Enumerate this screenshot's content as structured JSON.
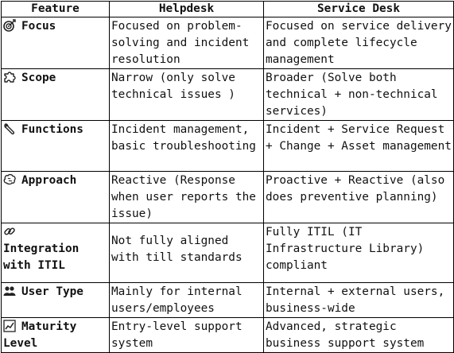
{
  "headers": [
    "Feature",
    "Helpdesk",
    "Service Desk"
  ],
  "rows": [
    {
      "icon": "target-icon",
      "feature": "Focus",
      "helpdesk": "Focused on problem-solving and incident resolution",
      "service_desk": "Focused on service delivery and complete lifecycle management"
    },
    {
      "icon": "puzzle-icon",
      "feature": "Scope",
      "helpdesk": "Narrow (only solve technical issues )",
      "service_desk": "Broader (Solve both technical + non-technical services)"
    },
    {
      "icon": "wrench-icon",
      "feature": "Functions",
      "helpdesk": "Incident management, basic troubleshooting",
      "service_desk": "Incident + Service Request + Change + Asset management"
    },
    {
      "icon": "brain-icon",
      "feature": "Approach",
      "helpdesk": "Reactive (Response when user reports the issue)",
      "service_desk": "Proactive + Reactive (also does preventive planning)"
    },
    {
      "icon": "link-icon",
      "feature": "Integration with ITIL",
      "helpdesk": "Not fully aligned with till standards",
      "service_desk": "Fully ITIL (IT Infrastructure Library) compliant"
    },
    {
      "icon": "users-icon",
      "feature": "User Type",
      "helpdesk": "Mainly for internal users/employees",
      "service_desk": "Internal + external users, business-wide"
    },
    {
      "icon": "chart-icon",
      "feature": "Maturity Level",
      "helpdesk": "Entry-level support system",
      "service_desk": "Advanced, strategic business support system"
    }
  ]
}
